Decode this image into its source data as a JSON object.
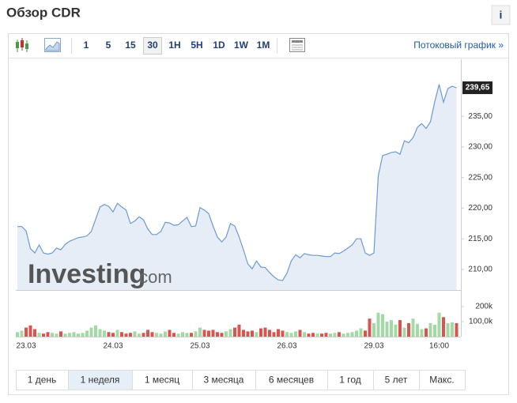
{
  "header": {
    "title": "Обзор CDR",
    "info": "i"
  },
  "toolbar": {
    "intervals": [
      "1",
      "5",
      "15",
      "30",
      "1H",
      "5H",
      "1D",
      "1W",
      "1M"
    ],
    "active": 3,
    "stream_link": "Потоковый график »"
  },
  "watermark": {
    "brand": "Investing",
    "domain": ".com"
  },
  "ranges": {
    "items": [
      "1 день",
      "1 неделя",
      "1 месяц",
      "3 месяца",
      "6 месяцев",
      "1 год",
      "5 лет",
      "Макс."
    ],
    "active": 1
  },
  "chart_data": [
    {
      "type": "area",
      "color": "#6b9bd2",
      "fill": "#e6edf6",
      "categories": [
        null,
        null,
        "23.03",
        null,
        null,
        null,
        null,
        null,
        null,
        null,
        null,
        null,
        null,
        null,
        null,
        null,
        null,
        null,
        null,
        null,
        null,
        null,
        "24.03",
        null,
        null,
        null,
        null,
        null,
        null,
        null,
        null,
        null,
        null,
        null,
        null,
        null,
        null,
        null,
        null,
        null,
        null,
        null,
        "25.03",
        null,
        null,
        null,
        null,
        null,
        null,
        null,
        null,
        null,
        null,
        null,
        null,
        null,
        null,
        null,
        null,
        null,
        null,
        null,
        "26.03",
        null,
        null,
        null,
        null,
        null,
        null,
        null,
        null,
        null,
        null,
        null,
        null,
        null,
        null,
        null,
        null,
        null,
        null,
        null,
        "29.03",
        null,
        null,
        null,
        null,
        null,
        null,
        null,
        null,
        null,
        null,
        null,
        null,
        null,
        null,
        "16:00",
        null,
        null,
        null,
        null
      ],
      "values": [
        217.0,
        217.0,
        216.3,
        213.4,
        212.7,
        214.0,
        212.7,
        212.5,
        212.7,
        213.5,
        213.2,
        214.1,
        214.6,
        214.9,
        215.2,
        215.3,
        215.5,
        216.2,
        218.2,
        220.2,
        220.6,
        220.3,
        219.4,
        220.8,
        220.2,
        219.7,
        217.5,
        217.9,
        218.6,
        218.1,
        216.6,
        215.7,
        215.7,
        216.2,
        217.7,
        217.6,
        217.2,
        217.3,
        217.9,
        218.5,
        217.0,
        217.1,
        220.1,
        219.7,
        219.1,
        217.1,
        215.3,
        214.5,
        215.3,
        217.5,
        217.1,
        215.3,
        213.2,
        210.9,
        210.1,
        211.4,
        210.4,
        210.3,
        209.5,
        208.8,
        208.3,
        208.2,
        209.4,
        211.4,
        212.4,
        211.9,
        212.6,
        212.4,
        212.3,
        212.3,
        212.2,
        212.1,
        212.1,
        212.7,
        212.6,
        213.0,
        213.5,
        214.0,
        215.0,
        215.0,
        212.7,
        212.3,
        212.7,
        225.3,
        228.6,
        228.8,
        229.1,
        229.2,
        228.8,
        231.0,
        230.7,
        231.5,
        233.2,
        233.8,
        233.0,
        234.1,
        237.4,
        240.2,
        237.3,
        239.5,
        239.9,
        239.65
      ],
      "last_value_label": "239,65",
      "ylim": [
        206.65,
        244.3
      ],
      "yticks": [
        {
          "value": 210,
          "label": "210,00"
        },
        {
          "value": 215,
          "label": "215,00"
        },
        {
          "value": 220,
          "label": "220,00"
        },
        {
          "value": 225,
          "label": "225,00"
        },
        {
          "value": 230,
          "label": "230,00"
        },
        {
          "value": 235,
          "label": "235,00"
        }
      ],
      "grid": false
    },
    {
      "type": "bar",
      "up_color": "#a3d9a5",
      "down_color": "#d9534f",
      "values": [
        30000,
        40000,
        60000,
        75000,
        50000,
        25000,
        20000,
        30000,
        25000,
        20000,
        35000,
        20000,
        25000,
        30000,
        20000,
        25000,
        40000,
        60000,
        75000,
        50000,
        40000,
        30000,
        25000,
        45000,
        30000,
        20000,
        25000,
        35000,
        20000,
        25000,
        45000,
        30000,
        25000,
        20000,
        35000,
        45000,
        25000,
        20000,
        30000,
        25000,
        25000,
        35000,
        60000,
        45000,
        40000,
        45000,
        30000,
        25000,
        35000,
        50000,
        60000,
        80000,
        45000,
        35000,
        40000,
        30000,
        55000,
        60000,
        45000,
        30000,
        50000,
        40000,
        30000,
        25000,
        35000,
        45000,
        30000,
        20000,
        25000,
        20000,
        20000,
        25000,
        20000,
        25000,
        30000,
        20000,
        25000,
        30000,
        40000,
        55000,
        40000,
        120000,
        90000,
        160000,
        150000,
        100000,
        110000,
        80000,
        110000,
        60000,
        90000,
        120000,
        85000,
        50000,
        55000,
        90000,
        80000,
        160000,
        130000,
        90000,
        95000,
        90000
      ],
      "ylim": [
        0,
        295000
      ],
      "yticks": [
        {
          "value": 100000,
          "label": "100,0k"
        },
        {
          "value": 200000,
          "label": "200k"
        }
      ]
    }
  ]
}
